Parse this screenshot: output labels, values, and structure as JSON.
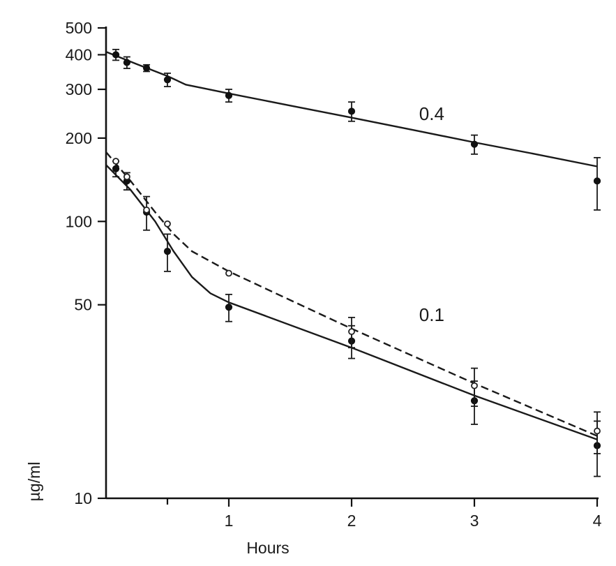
{
  "chart_data": {
    "type": "line",
    "title": "",
    "xlabel": "Hours",
    "ylabel": "µg/ml",
    "xlim": [
      0,
      4
    ],
    "ylim": [
      10,
      500
    ],
    "y_scale": "log",
    "x_ticks": [
      1,
      2,
      3,
      4
    ],
    "x_tick_labels": [
      "1",
      "2",
      "3",
      "4"
    ],
    "y_ticks": [
      10,
      50,
      100,
      200,
      300,
      400,
      500
    ],
    "y_tick_labels": [
      "10",
      "50",
      "100",
      "200",
      "300",
      "400",
      "500"
    ],
    "x_minor_ticks": [
      0.5
    ],
    "grid": false,
    "legend": "none",
    "annotations": [
      {
        "text": "0.4",
        "x": 2.55,
        "y": 245
      },
      {
        "text": "0.1",
        "x": 2.55,
        "y": 46
      }
    ],
    "series": [
      {
        "label": "0.4",
        "marker": "filled-circle",
        "line": "solid",
        "points": [
          {
            "x": 0.08,
            "y": 400,
            "err": 18
          },
          {
            "x": 0.17,
            "y": 375,
            "err": 18
          },
          {
            "x": 0.33,
            "y": 358,
            "err": 10
          },
          {
            "x": 0.5,
            "y": 325,
            "err": 18
          },
          {
            "x": 1.0,
            "y": 285,
            "err": 15
          },
          {
            "x": 2.0,
            "y": 250,
            "err": 20
          },
          {
            "x": 3.0,
            "y": 190,
            "err": 15
          },
          {
            "x": 4.0,
            "y": 140,
            "err": 30
          }
        ],
        "curve": [
          [
            0,
            410
          ],
          [
            0.25,
            370
          ],
          [
            0.5,
            335
          ],
          [
            0.65,
            312
          ],
          [
            1.0,
            290
          ],
          [
            1.5,
            262
          ],
          [
            2.0,
            237
          ],
          [
            2.5,
            214
          ],
          [
            3.0,
            193
          ],
          [
            3.5,
            175
          ],
          [
            4.0,
            158
          ]
        ]
      },
      {
        "label": "0.1",
        "marker": "filled-circle",
        "line": "solid",
        "points": [
          {
            "x": 0.08,
            "y": 155,
            "err": 10
          },
          {
            "x": 0.17,
            "y": 140,
            "err": 10
          },
          {
            "x": 0.33,
            "y": 108,
            "err": 15
          },
          {
            "x": 0.5,
            "y": 78,
            "err": 12
          },
          {
            "x": 1.0,
            "y": 49,
            "err": 5.5
          },
          {
            "x": 2.0,
            "y": 37,
            "err": 5
          },
          {
            "x": 3.0,
            "y": 22.5,
            "err": 4
          },
          {
            "x": 4.0,
            "y": 15.5,
            "err": 3.5
          }
        ],
        "curve": [
          [
            0,
            160
          ],
          [
            0.2,
            130
          ],
          [
            0.4,
            100
          ],
          [
            0.55,
            78
          ],
          [
            0.7,
            63
          ],
          [
            0.85,
            55
          ],
          [
            1.0,
            51
          ],
          [
            2.0,
            35
          ],
          [
            3.0,
            23.5
          ],
          [
            4.0,
            16.3
          ]
        ]
      },
      {
        "label": "",
        "marker": "open-circle",
        "line": "dashed",
        "points": [
          {
            "x": 0.08,
            "y": 165,
            "err": 0
          },
          {
            "x": 0.17,
            "y": 145,
            "err": 0
          },
          {
            "x": 0.33,
            "y": 110,
            "err": 0
          },
          {
            "x": 0.5,
            "y": 98,
            "err": 0
          },
          {
            "x": 1.0,
            "y": 65,
            "err": 0
          },
          {
            "x": 2.0,
            "y": 40,
            "err": 5
          },
          {
            "x": 3.0,
            "y": 25.5,
            "err": 4
          },
          {
            "x": 4.0,
            "y": 17.5,
            "err": 3
          }
        ],
        "curve": [
          [
            0,
            178
          ],
          [
            0.2,
            140
          ],
          [
            0.4,
            108
          ],
          [
            0.55,
            90
          ],
          [
            0.7,
            78
          ],
          [
            1.0,
            66
          ],
          [
            1.5,
            52
          ],
          [
            2.0,
            41
          ],
          [
            3.0,
            26
          ],
          [
            4.0,
            16.8
          ]
        ]
      }
    ]
  }
}
